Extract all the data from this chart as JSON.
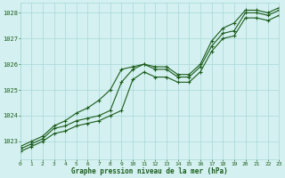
{
  "hours": [
    0,
    1,
    2,
    3,
    4,
    5,
    6,
    7,
    8,
    9,
    10,
    11,
    12,
    13,
    14,
    15,
    16,
    17,
    18,
    19,
    20,
    21,
    22,
    23
  ],
  "line_main": [
    1022.7,
    1022.9,
    1023.1,
    1023.5,
    1023.6,
    1023.8,
    1023.9,
    1024.0,
    1024.2,
    1025.3,
    1025.8,
    1026.0,
    1025.8,
    1025.8,
    1025.5,
    1025.5,
    1025.9,
    1026.7,
    1027.2,
    1027.3,
    1028.0,
    1028.0,
    1027.9,
    1028.1
  ],
  "line_high": [
    1022.8,
    1023.0,
    1023.2,
    1023.6,
    1023.8,
    1024.1,
    1024.3,
    1024.6,
    1025.0,
    1025.8,
    1025.9,
    1026.0,
    1025.9,
    1025.9,
    1025.6,
    1025.6,
    1026.0,
    1026.9,
    1027.4,
    1027.6,
    1028.1,
    1028.1,
    1028.0,
    1028.2
  ],
  "line_low": [
    1022.6,
    1022.8,
    1023.0,
    1023.3,
    1023.4,
    1023.6,
    1023.7,
    1023.8,
    1024.0,
    1024.2,
    1025.4,
    1025.7,
    1025.5,
    1025.5,
    1025.3,
    1025.3,
    1025.7,
    1026.5,
    1027.0,
    1027.1,
    1027.8,
    1027.8,
    1027.7,
    1027.9
  ],
  "line_color": "#1a5c1a",
  "bg_color": "#d4f0f0",
  "grid_color": "#a8d8d8",
  "ylabel_ticks": [
    1023,
    1024,
    1025,
    1026,
    1027,
    1028
  ],
  "xlabel_ticks": [
    0,
    1,
    2,
    3,
    4,
    5,
    6,
    7,
    8,
    9,
    10,
    11,
    12,
    13,
    14,
    15,
    16,
    17,
    18,
    19,
    20,
    21,
    22,
    23
  ],
  "ylim": [
    1022.3,
    1028.4
  ],
  "xlim": [
    0,
    23
  ],
  "xlabel": "Graphe pression niveau de la mer (hPa)",
  "marker": "+",
  "marker_size": 3.5,
  "linewidth": 0.8
}
